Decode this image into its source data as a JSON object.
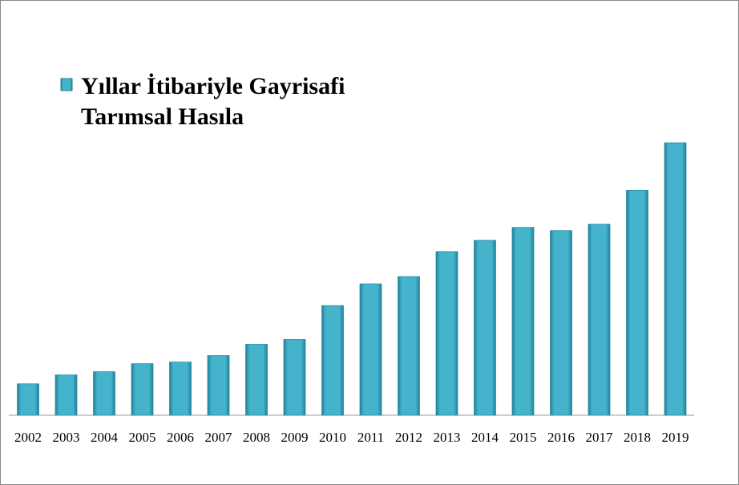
{
  "chart_data": {
    "type": "bar",
    "categories": [
      "2002",
      "2003",
      "2004",
      "2005",
      "2006",
      "2007",
      "2008",
      "2009",
      "2010",
      "2011",
      "2012",
      "2013",
      "2014",
      "2015",
      "2016",
      "2017",
      "2018",
      "2019"
    ],
    "series": [
      {
        "name": "Yıllar İtibariyle Gayrisafi Tarımsal Hasıla",
        "color": "#45b3cb",
        "values": [
          39,
          50,
          54,
          64,
          66,
          74,
          88,
          94,
          136,
          163,
          172,
          203,
          217,
          233,
          229,
          237,
          279,
          338
        ]
      }
    ],
    "ylim": [
      0,
      350
    ],
    "legend": "top-left"
  }
}
